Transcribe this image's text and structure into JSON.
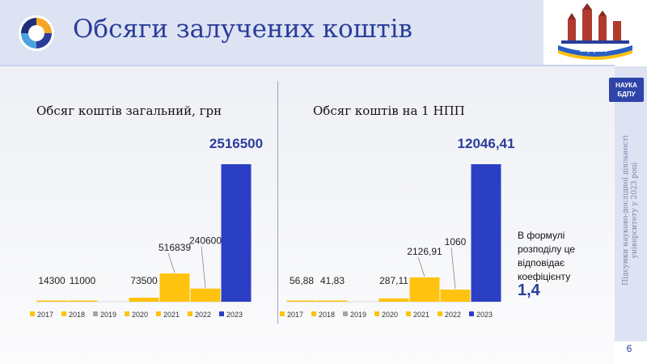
{
  "header": {
    "title": "Обсяги залучених коштів",
    "logo_text": "БДПУ"
  },
  "sidebar": {
    "badge_line1": "НАУКА",
    "badge_line2": "БДПУ",
    "vertical_line1": "Підсумки науково-дослідної діяльності",
    "vertical_line2": "університету у 2023 році"
  },
  "page_number": "6",
  "note": {
    "text": "В формулі розподілу це відповідає коефіцієнту",
    "value": "1,4"
  },
  "colors": {
    "accent": "#2a3d9a",
    "bar_yellow": "#ffc20e",
    "bar_gray": "#a5a5a5",
    "bar_blue": "#2b3fc4"
  },
  "chart_data": [
    {
      "type": "bar",
      "title": "Обсяг коштів загальний, грн",
      "categories": [
        "2017",
        "2018",
        "2019",
        "2020",
        "2021",
        "2022",
        "2023"
      ],
      "values": [
        14300,
        11000,
        0,
        73500,
        516839,
        240600,
        2516500
      ],
      "labels": [
        "14300",
        "11000",
        "",
        "73500",
        "516839",
        "240600",
        "2516500"
      ],
      "ylim": [
        0,
        2516500
      ],
      "legend": "bottom",
      "grid": false
    },
    {
      "type": "bar",
      "title": "Обсяг коштів на 1 НПП",
      "categories": [
        "2017",
        "2018",
        "2019",
        "2020",
        "2021",
        "2022",
        "2023"
      ],
      "values": [
        56.88,
        41.83,
        0,
        287.11,
        2126.91,
        1060,
        12046.41
      ],
      "labels": [
        "56,88",
        "41,83",
        "",
        "287,11",
        "2126,91",
        "1060",
        "12046,41"
      ],
      "ylim": [
        0,
        12046.41
      ],
      "legend": "bottom",
      "grid": false
    }
  ]
}
